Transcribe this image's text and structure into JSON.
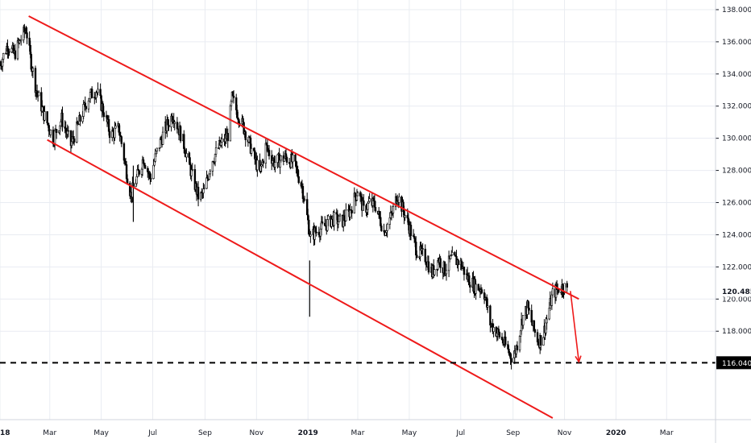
{
  "chart_data": {
    "type": "candlestick",
    "x_range": [
      "2018-01-01",
      "2020-04-28"
    ],
    "y_range": [
      112.5,
      138.6
    ],
    "y_ticks": [
      "118.000",
      "120.000",
      "122.000",
      "124.000",
      "126.000",
      "128.000",
      "130.000",
      "132.000",
      "134.000",
      "136.000",
      "138.000"
    ],
    "x_ticks": [
      {
        "label": "2018",
        "date": "2018-01-01",
        "bold": true
      },
      {
        "label": "Mar",
        "date": "2018-03-01"
      },
      {
        "label": "May",
        "date": "2018-05-01"
      },
      {
        "label": "Jul",
        "date": "2018-07-01"
      },
      {
        "label": "Sep",
        "date": "2018-09-01"
      },
      {
        "label": "Nov",
        "date": "2018-11-01"
      },
      {
        "label": "2019",
        "date": "2019-01-01",
        "bold": true
      },
      {
        "label": "Mar",
        "date": "2019-03-01"
      },
      {
        "label": "May",
        "date": "2019-05-01"
      },
      {
        "label": "Jul",
        "date": "2019-07-01"
      },
      {
        "label": "Sep",
        "date": "2019-09-01"
      },
      {
        "label": "Nov",
        "date": "2019-11-01"
      },
      {
        "label": "2020",
        "date": "2020-01-01",
        "bold": true
      },
      {
        "label": "Mar",
        "date": "2020-03-01"
      }
    ],
    "price_path": [
      [
        "2018-01-01",
        134.6
      ],
      [
        "2018-01-10",
        135.8
      ],
      [
        "2018-01-18",
        135.2
      ],
      [
        "2018-01-25",
        136.1
      ],
      [
        "2018-02-01",
        136.8
      ],
      [
        "2018-02-06",
        135.0
      ],
      [
        "2018-02-13",
        133.0
      ],
      [
        "2018-02-22",
        131.5
      ],
      [
        "2018-03-05",
        130.0
      ],
      [
        "2018-03-15",
        131.2
      ],
      [
        "2018-03-26",
        129.6
      ],
      [
        "2018-04-05",
        131.0
      ],
      [
        "2018-04-15",
        132.5
      ],
      [
        "2018-04-25",
        133.0
      ],
      [
        "2018-05-05",
        131.5
      ],
      [
        "2018-05-12",
        130.2
      ],
      [
        "2018-05-22",
        130.6
      ],
      [
        "2018-05-29",
        128.5
      ],
      [
        "2018-06-05",
        126.5
      ],
      [
        "2018-06-12",
        127.5
      ],
      [
        "2018-06-20",
        128.8
      ],
      [
        "2018-06-28",
        127.5
      ],
      [
        "2018-07-05",
        129.0
      ],
      [
        "2018-07-15",
        130.5
      ],
      [
        "2018-07-25",
        131.5
      ],
      [
        "2018-08-05",
        130.0
      ],
      [
        "2018-08-15",
        128.0
      ],
      [
        "2018-08-25",
        126.2
      ],
      [
        "2018-09-01",
        126.8
      ],
      [
        "2018-09-08",
        128.5
      ],
      [
        "2018-09-18",
        129.5
      ],
      [
        "2018-09-28",
        130.2
      ],
      [
        "2018-10-03",
        132.5
      ],
      [
        "2018-10-10",
        131.5
      ],
      [
        "2018-10-18",
        130.5
      ],
      [
        "2018-10-28",
        129.0
      ],
      [
        "2018-11-05",
        127.8
      ],
      [
        "2018-11-12",
        129.5
      ],
      [
        "2018-11-22",
        128.5
      ],
      [
        "2018-12-05",
        128.8
      ],
      [
        "2018-12-15",
        128.5
      ],
      [
        "2018-12-25",
        127.0
      ],
      [
        "2019-01-01",
        124.8
      ],
      [
        "2019-01-04",
        123.8
      ],
      [
        "2019-01-10",
        124.2
      ],
      [
        "2019-01-20",
        124.5
      ],
      [
        "2019-01-30",
        125.0
      ],
      [
        "2019-02-10",
        124.8
      ],
      [
        "2019-02-20",
        125.5
      ],
      [
        "2019-03-01",
        126.8
      ],
      [
        "2019-03-08",
        125.5
      ],
      [
        "2019-03-15",
        126.0
      ],
      [
        "2019-03-22",
        125.8
      ],
      [
        "2019-04-01",
        124.2
      ],
      [
        "2019-04-10",
        125.2
      ],
      [
        "2019-04-17",
        126.5
      ],
      [
        "2019-04-24",
        125.5
      ],
      [
        "2019-05-01",
        124.5
      ],
      [
        "2019-05-10",
        123.0
      ],
      [
        "2019-05-20",
        122.6
      ],
      [
        "2019-05-28",
        121.6
      ],
      [
        "2019-06-05",
        122.5
      ],
      [
        "2019-06-12",
        121.8
      ],
      [
        "2019-06-20",
        122.5
      ],
      [
        "2019-06-30",
        122.3
      ],
      [
        "2019-07-08",
        121.4
      ],
      [
        "2019-07-18",
        120.8
      ],
      [
        "2019-07-28",
        120.6
      ],
      [
        "2019-08-05",
        118.5
      ],
      [
        "2019-08-15",
        117.8
      ],
      [
        "2019-08-22",
        117.2
      ],
      [
        "2019-08-28",
        116.6
      ],
      [
        "2019-09-01",
        116.2
      ],
      [
        "2019-09-06",
        117.2
      ],
      [
        "2019-09-12",
        118.8
      ],
      [
        "2019-09-18",
        119.5
      ],
      [
        "2019-09-25",
        118.2
      ],
      [
        "2019-10-01",
        117.4
      ],
      [
        "2019-10-06",
        117.6
      ],
      [
        "2019-10-12",
        119.0
      ],
      [
        "2019-10-18",
        120.3
      ],
      [
        "2019-10-24",
        120.6
      ],
      [
        "2019-10-31",
        120.8
      ],
      [
        "2019-11-04",
        120.5
      ]
    ],
    "spikes": [
      {
        "date": "2018-06-08",
        "low": 124.8
      },
      {
        "date": "2019-01-03",
        "low": 118.9
      }
    ],
    "channel_lines": [
      {
        "from": [
          "2018-02-04",
          137.6
        ],
        "to": [
          "2019-11-18",
          120.0
        ]
      },
      {
        "from": [
          "2018-02-26",
          129.9
        ],
        "to": [
          "2019-10-18",
          112.6
        ]
      }
    ],
    "target_arrow": {
      "from": [
        "2019-11-08",
        120.5
      ],
      "to": [
        "2019-11-18",
        116.1
      ]
    },
    "horizontal_level": {
      "value": 116.04,
      "style": "dashed",
      "label": "116.040"
    },
    "last_price": {
      "value": 120.485,
      "label": "120.485"
    },
    "colors": {
      "candle": "#000000",
      "channel": "#ee1a1a",
      "level": "#000000",
      "grid": "#e9ecf2",
      "last_price_badge": "#ffffff",
      "level_badge": "#000000"
    },
    "grid": true
  }
}
